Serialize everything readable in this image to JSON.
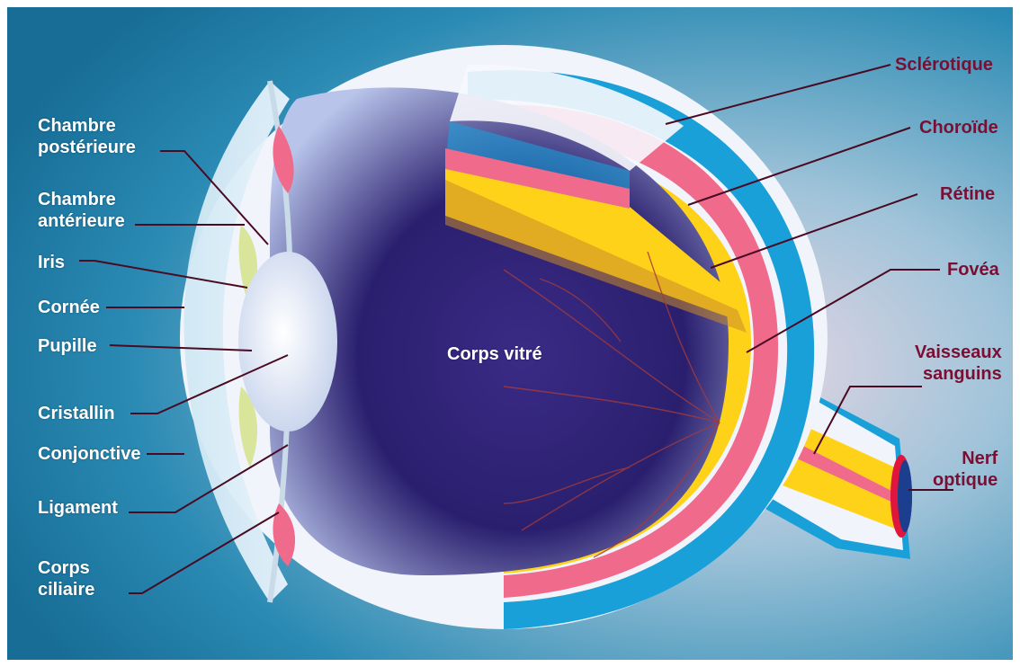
{
  "labels": {
    "chambre_posterieure": [
      "Chambre",
      "postérieure"
    ],
    "chambre_anterieure": [
      "Chambre",
      "antérieure"
    ],
    "iris": "Iris",
    "cornee": "Cornée",
    "pupille": "Pupille",
    "cristallin": "Cristallin",
    "conjonctive": "Conjonctive",
    "ligament": "Ligament",
    "corps_ciliaire": [
      "Corps",
      "ciliaire"
    ],
    "corps_vitre": "Corps vitré",
    "sclerotique": "Sclérotique",
    "choroide": "Choroïde",
    "retine": "Rétine",
    "fovea": "Fovéa",
    "vaisseaux_sanguins": [
      "Vaisseaux",
      "sanguins"
    ],
    "nerf_optique": [
      "Nerf",
      "optique"
    ]
  },
  "colors": {
    "background": "#1f7fa6",
    "sclera": "#f2f4fb",
    "sclera_band": "#1aa0d8",
    "choroid": "#f06a8c",
    "retina": "#ffd21a",
    "vitreous": "#2a1f6e",
    "label_dark": "#7a0f34",
    "leader_line": "#4a0a22"
  }
}
